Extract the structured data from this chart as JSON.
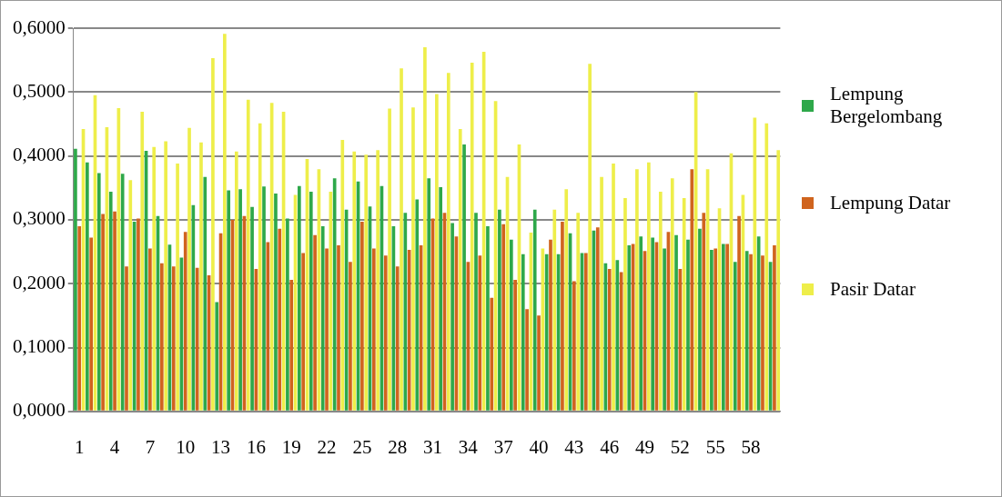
{
  "chart_data": {
    "type": "bar",
    "categories": [
      "1",
      null,
      null,
      "4",
      null,
      null,
      "7",
      null,
      null,
      "10",
      null,
      null,
      "13",
      null,
      null,
      "16",
      null,
      null,
      "19",
      null,
      null,
      "22",
      null,
      null,
      "25",
      null,
      null,
      "28",
      null,
      null,
      "31",
      null,
      null,
      "34",
      null,
      null,
      "37",
      null,
      null,
      "40",
      null,
      null,
      "43",
      null,
      null,
      "46",
      null,
      null,
      "49",
      null,
      null,
      "52",
      null,
      null,
      "55",
      null,
      null,
      "58",
      null,
      null
    ],
    "series": [
      {
        "name": "Lempung Bergelombang",
        "color": "#2ea84a",
        "values": [
          0.411,
          0.39,
          0.373,
          0.344,
          0.372,
          0.297,
          0.408,
          0.306,
          0.261,
          0.241,
          0.323,
          0.367,
          0.171,
          0.346,
          0.348,
          0.32,
          0.352,
          0.341,
          0.302,
          0.353,
          0.344,
          0.29,
          0.365,
          0.316,
          0.36,
          0.321,
          0.353,
          0.29,
          0.311,
          0.332,
          0.365,
          0.351,
          0.295,
          0.418,
          0.311,
          0.29,
          0.316,
          0.269,
          0.246,
          0.316,
          0.246,
          0.246,
          0.279,
          0.248,
          0.283,
          0.232,
          0.237,
          0.26,
          0.274,
          0.272,
          0.255,
          0.276,
          0.269,
          0.286,
          0.253,
          0.262,
          0.234,
          0.251,
          0.274,
          0.234
        ]
      },
      {
        "name": "Lempung Datar",
        "color": "#d0641e",
        "values": [
          0.29,
          0.272,
          0.309,
          0.313,
          0.227,
          0.302,
          0.255,
          0.232,
          0.227,
          0.281,
          0.225,
          0.213,
          0.279,
          0.3,
          0.306,
          0.223,
          0.265,
          0.286,
          0.206,
          0.248,
          0.276,
          0.255,
          0.26,
          0.234,
          0.297,
          0.255,
          0.244,
          0.227,
          0.253,
          0.26,
          0.302,
          0.311,
          0.274,
          0.234,
          0.244,
          0.178,
          0.293,
          0.206,
          0.16,
          0.15,
          0.269,
          0.297,
          0.204,
          0.248,
          0.288,
          0.223,
          0.218,
          0.262,
          0.251,
          0.265,
          0.281,
          0.223,
          0.379,
          0.311,
          0.255,
          0.262,
          0.306,
          0.246,
          0.244,
          0.26
        ]
      },
      {
        "name": "Pasir Datar",
        "color": "#eeee4a",
        "values": [
          0.442,
          0.495,
          0.445,
          0.475,
          0.362,
          0.469,
          0.414,
          0.423,
          0.388,
          0.444,
          0.421,
          0.553,
          0.591,
          0.407,
          0.488,
          0.451,
          0.483,
          0.469,
          0.339,
          0.395,
          0.379,
          0.344,
          0.425,
          0.407,
          0.402,
          0.409,
          0.474,
          0.537,
          0.476,
          0.57,
          0.497,
          0.53,
          0.442,
          0.546,
          0.563,
          0.486,
          0.367,
          0.418,
          0.28,
          0.255,
          0.316,
          0.348,
          0.311,
          0.544,
          0.367,
          0.388,
          0.334,
          0.379,
          0.39,
          0.344,
          0.365,
          0.334,
          0.5,
          0.379,
          0.318,
          0.404,
          0.339,
          0.46,
          0.451,
          0.409
        ]
      }
    ],
    "ylim": [
      0,
      0.6
    ],
    "yticks": [
      {
        "value": 0,
        "label": "0,0000"
      },
      {
        "value": 0.1,
        "label": "0,1000"
      },
      {
        "value": 0.2,
        "label": "0,2000"
      },
      {
        "value": 0.3,
        "label": "0,3000"
      },
      {
        "value": 0.4,
        "label": "0,4000"
      },
      {
        "value": 0.5,
        "label": "0,5000"
      },
      {
        "value": 0.6,
        "label": "0,6000"
      }
    ],
    "grid": "y",
    "legend": "right"
  }
}
